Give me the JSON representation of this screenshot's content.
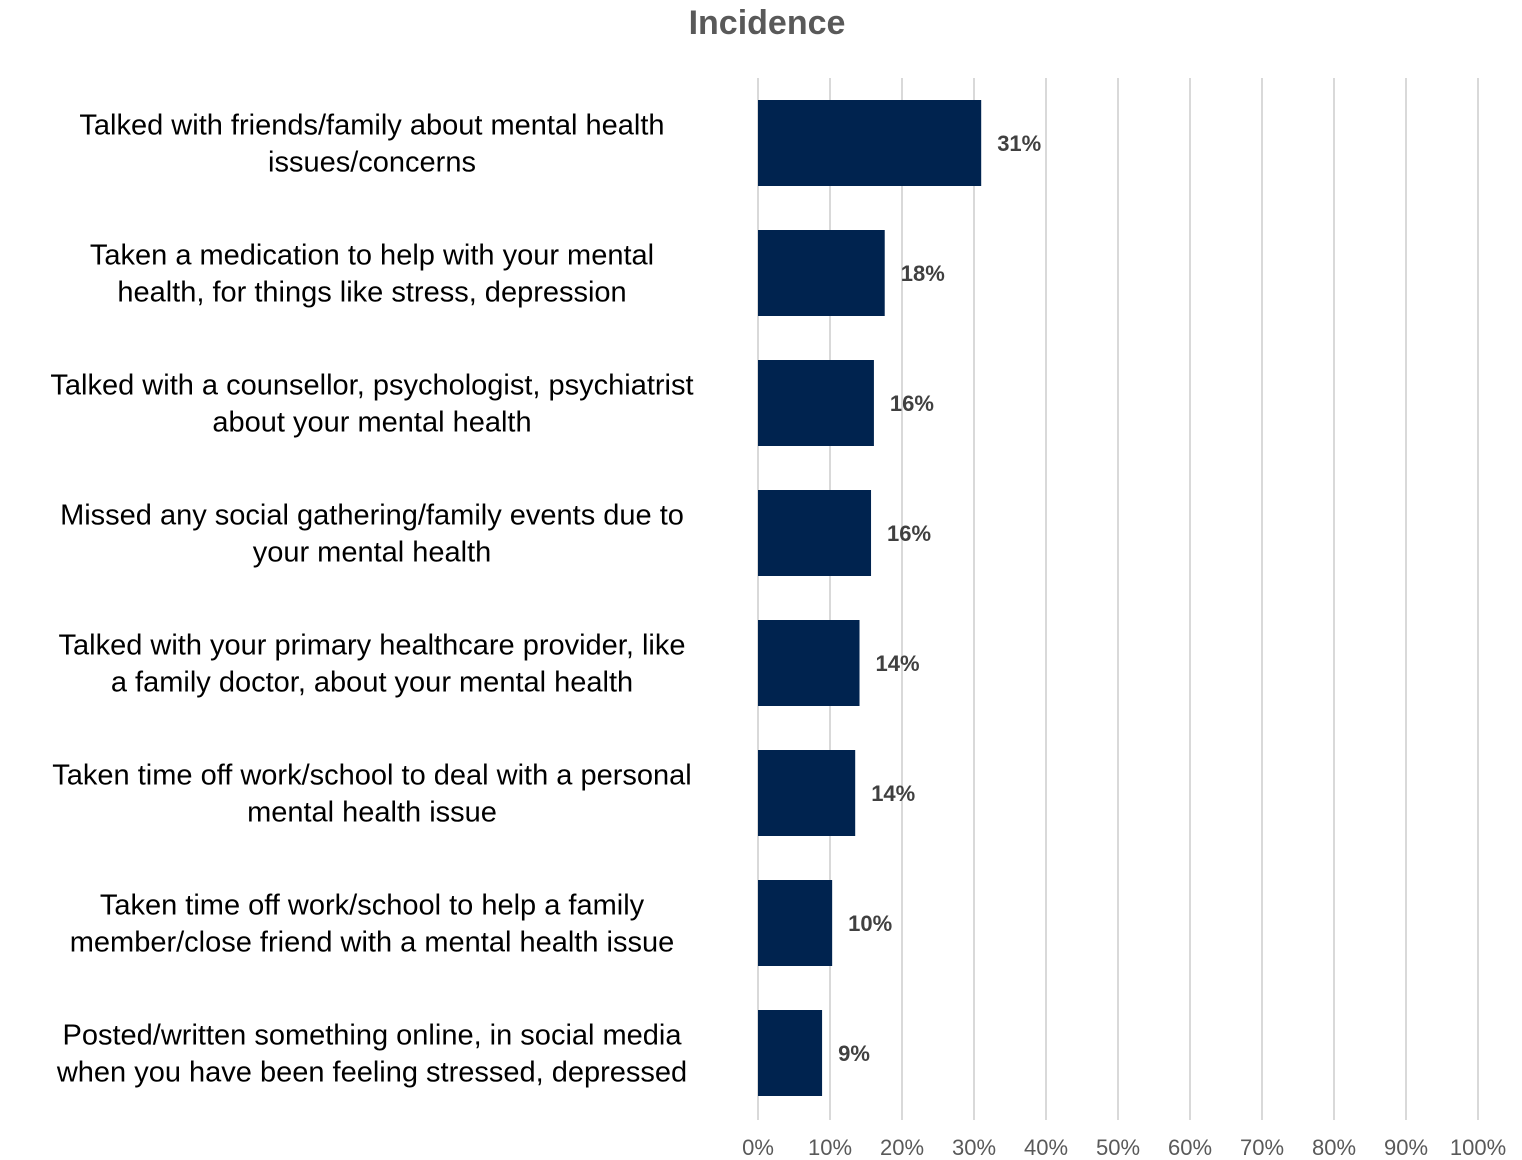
{
  "chart_data": {
    "type": "bar",
    "orientation": "horizontal",
    "title": "Incidence",
    "categories": [
      [
        "Talked with friends/family about mental health",
        "issues/concerns"
      ],
      [
        "Taken a medication to help with your mental",
        "health, for things like stress, depression"
      ],
      [
        "Talked with a counsellor, psychologist, psychiatrist",
        "about your mental health"
      ],
      [
        "Missed any social gathering/family events due to",
        "your mental health"
      ],
      [
        "Talked with your primary healthcare provider, like",
        "a family doctor, about your mental health"
      ],
      [
        "Taken time off work/school to deal with a personal",
        "mental health issue"
      ],
      [
        "Taken time off work/school to help a family",
        "member/close friend with a mental health issue"
      ],
      [
        "Posted/written something online, in social media",
        "when you have been feeling stressed, depressed"
      ]
    ],
    "values": [
      31,
      17.6,
      16.1,
      15.7,
      14.1,
      13.5,
      10.3,
      8.9
    ],
    "data_labels": [
      "31%",
      "18%",
      "16%",
      "16%",
      "14%",
      "14%",
      "10%",
      "9%"
    ],
    "xlim": [
      0,
      100
    ],
    "x_ticks": [
      "0%",
      "10%",
      "20%",
      "30%",
      "40%",
      "50%",
      "60%",
      "70%",
      "80%",
      "90%",
      "100%"
    ],
    "grid": true,
    "bar_color": "#00234f"
  }
}
